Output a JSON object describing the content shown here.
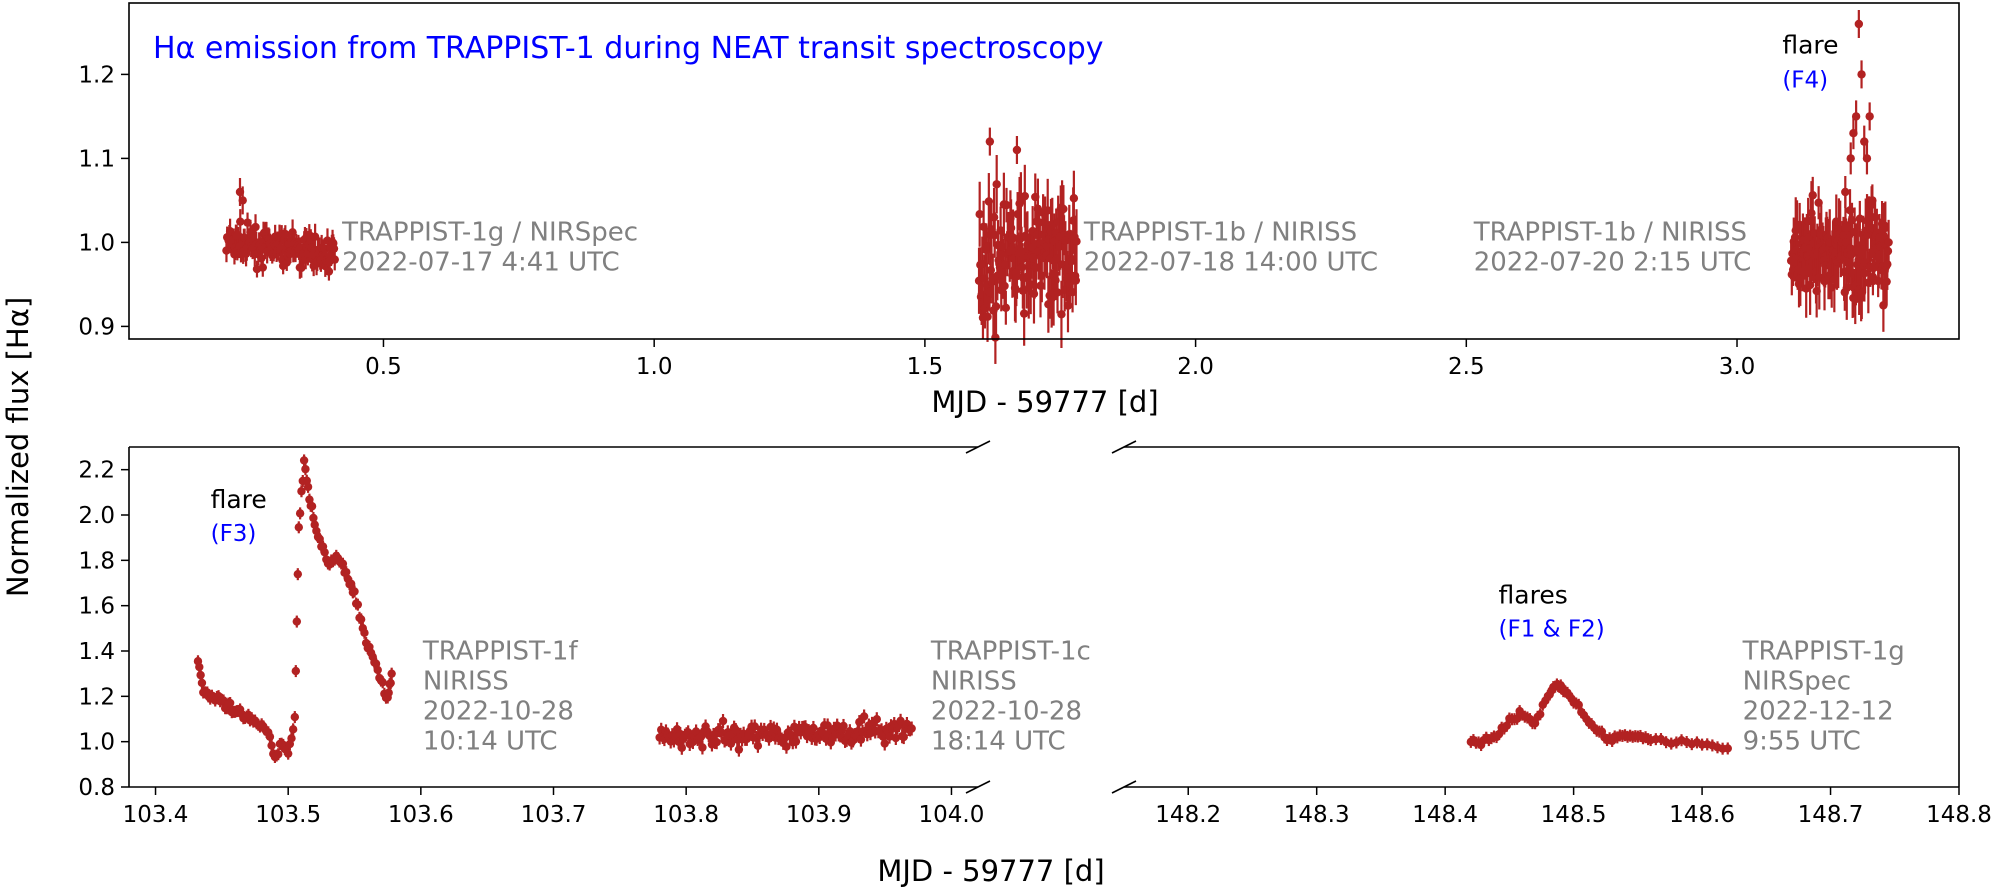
{
  "colors": {
    "data": "#b22222",
    "title": "#0000ff",
    "annotation": "#808080",
    "flare_id": "#0000ff"
  },
  "ylabel": "Normalized flux [Hα]",
  "chart_data": [
    {
      "type": "scatter",
      "panel": "top",
      "title": "Hα emission from TRAPPIST-1 during NEAT transit spectroscopy",
      "xlabel": "MJD - 59777 [d]",
      "ylabel": "Normalized flux [Hα]",
      "xlim": [
        0.03,
        3.41
      ],
      "ylim": [
        0.885,
        1.285
      ],
      "xticks": [
        0.5,
        1.0,
        1.5,
        2.0,
        2.5,
        3.0
      ],
      "xtick_labels": [
        "0.5",
        "1.0",
        "1.5",
        "2.0",
        "2.5",
        "3.0"
      ],
      "yticks": [
        0.9,
        1.0,
        1.1,
        1.2
      ],
      "ytick_labels": [
        "0.9",
        "1.0",
        "1.1",
        "1.2"
      ],
      "series": [
        {
          "x_range": [
            0.21,
            0.41
          ],
          "y_start": 1.0,
          "y_end": 0.985,
          "scatter": 0.014,
          "peaks": [
            {
              "x": 0.235,
              "y": 1.06
            },
            {
              "x": 0.24,
              "y": 1.05
            }
          ]
        },
        {
          "x_range": [
            1.6,
            1.78
          ],
          "y_start": 0.98,
          "y_end": 0.99,
          "scatter": 0.045,
          "peaks": [
            {
              "x": 1.62,
              "y": 1.12
            },
            {
              "x": 1.67,
              "y": 1.11
            }
          ]
        },
        {
          "x_range": [
            3.1,
            3.28
          ],
          "y_start": 0.98,
          "y_end": 0.99,
          "scatter": 0.04,
          "peaks": [
            {
              "x": 3.225,
              "y": 1.26
            },
            {
              "x": 3.23,
              "y": 1.2
            },
            {
              "x": 3.245,
              "y": 1.15
            }
          ]
        }
      ],
      "annotations": [
        {
          "lines": [
            "TRAPPIST-1g / NIRSpec",
            "2022-07-17 4:41 UTC"
          ],
          "x": 0.42,
          "y": 1.0
        },
        {
          "lines": [
            "TRAPPIST-1b / NIRISS",
            "2022-07-18 14:00 UTC"
          ],
          "x": 1.79,
          "y": 1.0
        },
        {
          "lines": [
            "TRAPPIST-1b / NIRISS",
            "2022-07-20 2:15 UTC"
          ],
          "x": 2.51,
          "y": 1.0
        }
      ],
      "flare_labels": [
        {
          "label": "flare",
          "id": "(F4)",
          "x": 3.08,
          "y": 1.225
        }
      ]
    },
    {
      "type": "scatter",
      "panel": "bottom-left",
      "xlabel": "MJD - 59777 [d]",
      "xlim": [
        103.38,
        104.02
      ],
      "ylim": [
        0.8,
        2.3
      ],
      "xticks": [
        103.4,
        103.5,
        103.6,
        103.7,
        103.8,
        103.9,
        104.0
      ],
      "xtick_labels": [
        "103.4",
        "103.5",
        "103.6",
        "103.7",
        "103.8",
        "103.9",
        "104.0"
      ],
      "yticks": [
        0.8,
        1.0,
        1.2,
        1.4,
        1.6,
        1.8,
        2.0,
        2.2
      ],
      "ytick_labels": [
        "0.8",
        "1.0",
        "1.2",
        "1.4",
        "1.6",
        "1.8",
        "2.0",
        "2.2"
      ],
      "points": [
        [
          103.432,
          1.36
        ],
        [
          103.436,
          1.23
        ],
        [
          103.44,
          1.2
        ],
        [
          103.445,
          1.19
        ],
        [
          103.45,
          1.17
        ],
        [
          103.455,
          1.15
        ],
        [
          103.46,
          1.13
        ],
        [
          103.465,
          1.12
        ],
        [
          103.47,
          1.1
        ],
        [
          103.475,
          1.08
        ],
        [
          103.48,
          1.06
        ],
        [
          103.485,
          1.04
        ],
        [
          103.49,
          0.93
        ],
        [
          103.495,
          1.0
        ],
        [
          103.5,
          0.95
        ],
        [
          103.505,
          1.1
        ],
        [
          103.508,
          1.95
        ],
        [
          103.512,
          2.24
        ],
        [
          103.516,
          2.09
        ],
        [
          103.52,
          1.96
        ],
        [
          103.525,
          1.87
        ],
        [
          103.53,
          1.78
        ],
        [
          103.535,
          1.81
        ],
        [
          103.54,
          1.79
        ],
        [
          103.545,
          1.72
        ],
        [
          103.55,
          1.64
        ],
        [
          103.555,
          1.53
        ],
        [
          103.56,
          1.43
        ],
        [
          103.565,
          1.35
        ],
        [
          103.57,
          1.27
        ],
        [
          103.575,
          1.19
        ],
        [
          103.578,
          1.3
        ]
      ],
      "series": [
        {
          "x_range": [
            103.78,
            103.97
          ],
          "y_start": 1.02,
          "y_end": 1.05,
          "scatter": 0.035
        }
      ],
      "annotations": [
        {
          "lines": [
            "TRAPPIST-1f",
            "NIRISS",
            "2022-10-28",
            "10:14 UTC"
          ],
          "x": 103.6,
          "y": 1.0
        },
        {
          "lines": [
            "TRAPPIST-1c",
            "NIRISS",
            "2022-10-28",
            "18:14 UTC"
          ],
          "x": 103.983,
          "y": 1.0
        }
      ],
      "flare_labels": [
        {
          "label": "flare",
          "id": "(F3)",
          "x": 103.44,
          "y": 2.03
        }
      ]
    },
    {
      "type": "scatter",
      "panel": "bottom-right",
      "xlim": [
        148.15,
        148.8
      ],
      "ylim": [
        0.8,
        2.3
      ],
      "xticks": [
        148.2,
        148.3,
        148.4,
        148.5,
        148.6,
        148.7,
        148.8
      ],
      "xtick_labels": [
        "148.2",
        "148.3",
        "148.4",
        "148.5",
        "148.6",
        "148.7",
        "148.8"
      ],
      "points": [
        [
          148.42,
          1.0
        ],
        [
          148.43,
          1.0
        ],
        [
          148.44,
          1.02
        ],
        [
          148.45,
          1.09
        ],
        [
          148.46,
          1.12
        ],
        [
          148.47,
          1.08
        ],
        [
          148.48,
          1.2
        ],
        [
          148.487,
          1.26
        ],
        [
          148.492,
          1.23
        ],
        [
          148.5,
          1.18
        ],
        [
          148.51,
          1.1
        ],
        [
          148.52,
          1.04
        ],
        [
          148.53,
          1.01
        ],
        [
          148.54,
          1.02
        ],
        [
          148.55,
          1.03
        ],
        [
          148.56,
          1.01
        ],
        [
          148.58,
          1.0
        ],
        [
          148.6,
          0.99
        ],
        [
          148.62,
          0.97
        ]
      ],
      "annotations": [
        {
          "lines": [
            "TRAPPIST-1g",
            "NIRSpec",
            "2022-12-12",
            "9:55 UTC"
          ],
          "x": 148.63,
          "y": 1.0
        }
      ],
      "flare_labels": [
        {
          "label": "flares",
          "id": "(F1 & F2)",
          "x": 148.44,
          "y": 1.61
        }
      ]
    }
  ]
}
